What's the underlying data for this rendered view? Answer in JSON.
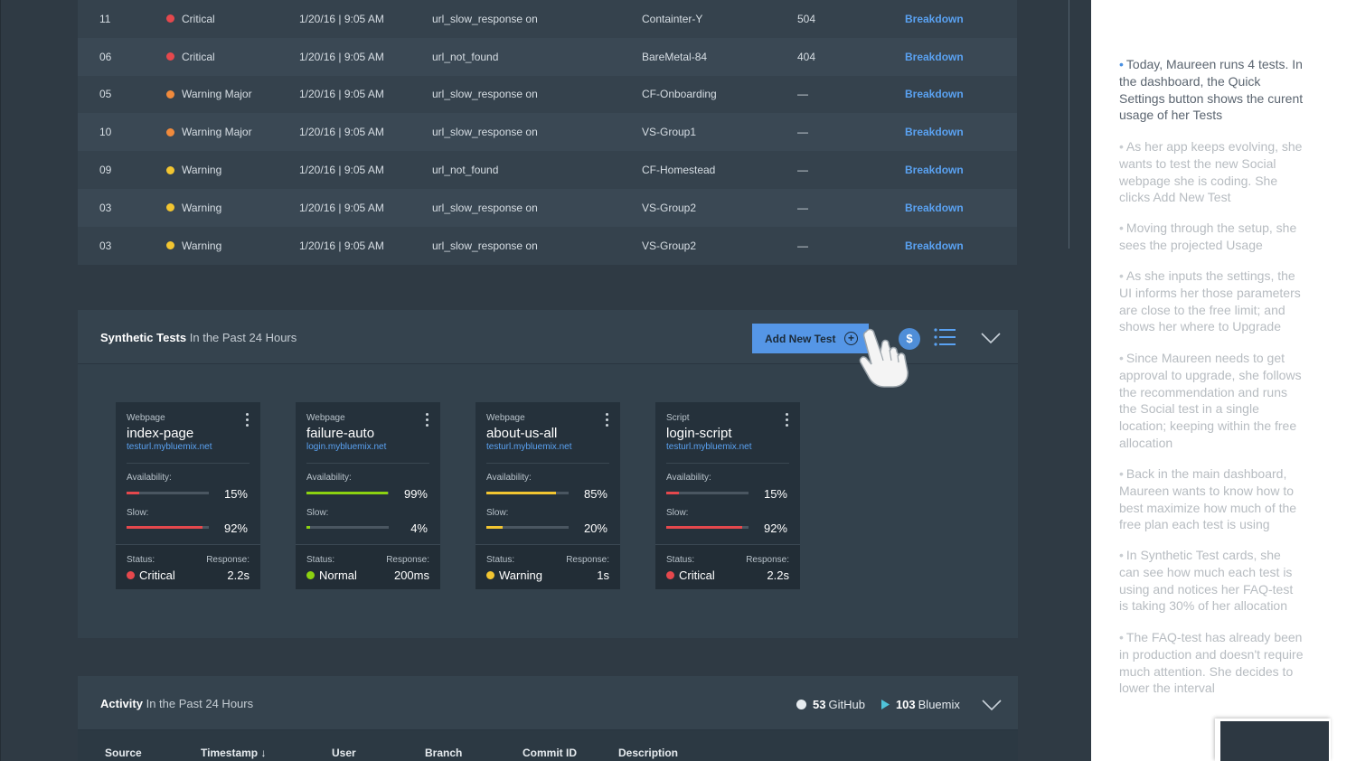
{
  "alerts": {
    "rows": [
      {
        "id": "11",
        "severity": "Critical",
        "sev_color": "#e5484d",
        "date": "1/20/16 | 9:05 AM",
        "test": "url_slow_response on",
        "host": "Containter-Y",
        "code": "504",
        "link": "Breakdown"
      },
      {
        "id": "06",
        "severity": "Critical",
        "sev_color": "#e5484d",
        "date": "1/20/16 | 9:05 AM",
        "test": "url_not_found",
        "host": "BareMetal-84",
        "code": "404",
        "link": "Breakdown"
      },
      {
        "id": "05",
        "severity": "Warning Major",
        "sev_color": "#f08a3c",
        "date": "1/20/16 | 9:05 AM",
        "test": "url_slow_response on",
        "host": "CF-Onboarding",
        "code": "—",
        "link": "Breakdown"
      },
      {
        "id": "10",
        "severity": "Warning Major",
        "sev_color": "#f08a3c",
        "date": "1/20/16 | 9:05 AM",
        "test": "url_slow_response on",
        "host": "VS-Group1",
        "code": "—",
        "link": "Breakdown"
      },
      {
        "id": "09",
        "severity": "Warning",
        "sev_color": "#f2c531",
        "date": "1/20/16 | 9:05 AM",
        "test": "url_not_found",
        "host": "CF-Homestead",
        "code": "—",
        "link": "Breakdown"
      },
      {
        "id": "03",
        "severity": "Warning",
        "sev_color": "#f2c531",
        "date": "1/20/16 | 9:05 AM",
        "test": "url_slow_response on",
        "host": "VS-Group2",
        "code": "—",
        "link": "Breakdown"
      },
      {
        "id": "03",
        "severity": "Warning",
        "sev_color": "#f2c531",
        "date": "1/20/16 | 9:05 AM",
        "test": "url_slow_response on",
        "host": "VS-Group2",
        "code": "—",
        "link": "Breakdown"
      }
    ]
  },
  "synthetic": {
    "title": "Synthetic Tests",
    "subtitle": "In the Past 24 Hours",
    "add_button": "Add New Test",
    "plus_glyph": "+",
    "dollar_glyph": "$",
    "cards": [
      {
        "type": "Webpage",
        "name": "index-page",
        "url": "testurl.mybluemix.net",
        "availability_label": "Availability:",
        "availability": 15,
        "availability_text": "15%",
        "availability_color": "#e5484d",
        "slow_label": "Slow:",
        "slow": 92,
        "slow_text": "92%",
        "slow_color": "#e5484d",
        "status_label": "Status:",
        "status": "Critical",
        "status_color": "#e5484d",
        "response_label": "Response:",
        "response": "2.2s"
      },
      {
        "type": "Webpage",
        "name": "failure-auto",
        "url": "login.mybluemix.net",
        "availability_label": "Availability:",
        "availability": 99,
        "availability_text": "99%",
        "availability_color": "#8cd211",
        "slow_label": "Slow:",
        "slow": 4,
        "slow_text": "4%",
        "slow_color": "#8cd211",
        "status_label": "Status:",
        "status": "Normal",
        "status_color": "#8cd211",
        "response_label": "Response:",
        "response": "200ms"
      },
      {
        "type": "Webpage",
        "name": "about-us-all",
        "url": "testurl.mybluemix.net",
        "availability_label": "Availability:",
        "availability": 85,
        "availability_text": "85%",
        "availability_color": "#f2c531",
        "slow_label": "Slow:",
        "slow": 20,
        "slow_text": "20%",
        "slow_color": "#f2c531",
        "status_label": "Status:",
        "status": "Warning",
        "status_color": "#f2c531",
        "response_label": "Response:",
        "response": "1s"
      },
      {
        "type": "Script",
        "name": "login-script",
        "url": "testurl.mybluemix.net",
        "availability_label": "Availability:",
        "availability": 15,
        "availability_text": "15%",
        "availability_color": "#e5484d",
        "slow_label": "Slow:",
        "slow": 92,
        "slow_text": "92%",
        "slow_color": "#e5484d",
        "status_label": "Status:",
        "status": "Critical",
        "status_color": "#e5484d",
        "response_label": "Response:",
        "response": "2.2s"
      }
    ]
  },
  "activity": {
    "title": "Activity",
    "subtitle": "In the Past 24 Hours",
    "github_count": "53",
    "github_label": "GitHub",
    "bluemix_count": "103",
    "bluemix_label": "Bluemix",
    "columns": [
      "Source",
      "Timestamp  ↓",
      "User",
      "Branch",
      "Commit ID",
      "Description"
    ]
  },
  "notes": [
    "Today, Maureen runs 4 tests. In the dashboard, the Quick Settings button shows the curent usage of her Tests",
    "As her app keeps evolving, she wants to test the new Social webpage she is coding. She clicks Add New Test",
    "Moving through the setup, she sees the projected Usage",
    "As she inputs the settings, the UI informs her those parameters are close to the free limit; and shows her where to Upgrade",
    "Since Maureen needs to get approval to upgrade, she follows the recommendation and runs the Social test in a single location; keeping within the free allocation",
    "Back in the main dashboard, Maureen wants to know how to best maximize how much of the free plan each test is using",
    "In Synthetic Test cards, she can see how much each test is using and notices her FAQ-test is taking 30% of her allocation",
    "The FAQ-test has already been in production and doesn't require much attention. She decides to lower the interval"
  ],
  "icons": {
    "severity": "status-dot-icon",
    "add": "plus-circle-icon",
    "usage": "dollar-icon",
    "list": "list-icon",
    "collapse": "chevron-down-icon",
    "cursor": "hand-pointer-icon",
    "kebab": "kebab-menu-icon",
    "github": "github-icon",
    "bluemix": "bluemix-icon",
    "sort": "arrow-down-icon"
  }
}
